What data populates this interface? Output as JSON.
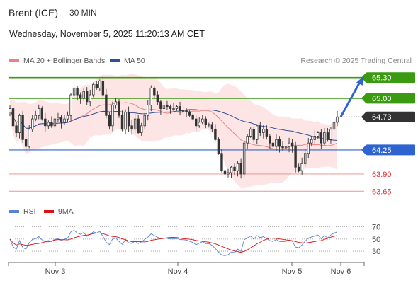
{
  "header": {
    "instrument": "Brent (ICE)",
    "timeframe": "30 MIN",
    "datetime": "Wednesday, November 5, 2025 11:20:13 AM CET"
  },
  "legend": {
    "ma20": {
      "label": "MA 20 + Bollinger Bands",
      "color": "#f08080"
    },
    "ma50": {
      "label": "MA 50",
      "color": "#2e4f9a"
    }
  },
  "credit": "Research © 2025 Trading Central",
  "rsi_legend": {
    "rsi": {
      "label": "RSI",
      "color": "#5b7fd6"
    },
    "ma9": {
      "label": "9MA",
      "color": "#d11"
    }
  },
  "chart_data": {
    "type": "candlestick",
    "price_axis": {
      "min": 63.55,
      "max": 65.4
    },
    "time_labels": [
      "Nov 3",
      "Nov 4",
      "Nov 5",
      "Nov 6"
    ],
    "levels": [
      {
        "value": 65.3,
        "label": "65.30",
        "kind": "resistance",
        "color": "#3a9a10"
      },
      {
        "value": 65.0,
        "label": "65.00",
        "kind": "resistance",
        "color": "#3a9a10"
      },
      {
        "value": 64.73,
        "label": "64.73",
        "kind": "last",
        "color": "#333333"
      },
      {
        "value": 64.25,
        "label": "64.25",
        "kind": "pivot",
        "color": "#2f64d0"
      },
      {
        "value": 63.9,
        "label": "63.90",
        "kind": "support",
        "color": "#f0a0a0"
      },
      {
        "value": 63.65,
        "label": "63.65",
        "kind": "support",
        "color": "#f0a0a0"
      }
    ],
    "closes": [
      64.85,
      64.6,
      64.5,
      64.75,
      64.4,
      64.3,
      64.55,
      64.7,
      64.75,
      64.85,
      64.7,
      64.6,
      64.65,
      64.6,
      64.7,
      64.72,
      64.65,
      64.7,
      64.75,
      65.05,
      65.15,
      65.05,
      65.0,
      65.1,
      64.95,
      65.05,
      65.2,
      65.15,
      65.25,
      65.05,
      64.75,
      64.6,
      64.9,
      64.95,
      64.75,
      64.55,
      64.8,
      64.6,
      64.55,
      64.7,
      64.5,
      64.6,
      64.75,
      64.9,
      65.15,
      65.05,
      64.95,
      64.85,
      64.9,
      64.88,
      64.85,
      64.85,
      64.88,
      64.82,
      64.82,
      64.8,
      64.75,
      64.7,
      64.6,
      64.65,
      64.7,
      64.62,
      64.62,
      64.55,
      64.4,
      64.2,
      63.95,
      63.9,
      63.92,
      64.0,
      63.95,
      64.05,
      63.9,
      64.35,
      64.45,
      64.55,
      64.4,
      64.6,
      64.5,
      64.55,
      64.45,
      64.35,
      64.3,
      64.4,
      64.3,
      64.28,
      64.3,
      64.35,
      64.3,
      64.0,
      63.95,
      64.05,
      64.2,
      64.35,
      64.4,
      64.45,
      64.5,
      64.35,
      64.5,
      64.4,
      64.55,
      64.65,
      64.73
    ],
    "rsi_axis": {
      "min": 15,
      "max": 80,
      "ticks": [
        70,
        50,
        30
      ]
    }
  }
}
